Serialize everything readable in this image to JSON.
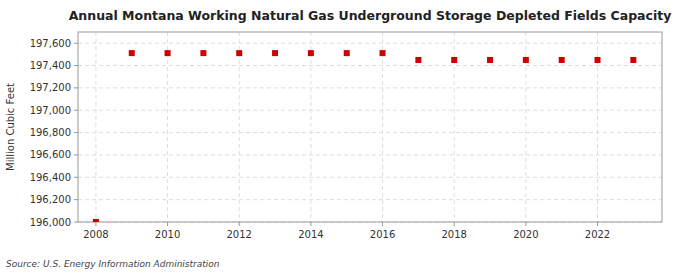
{
  "chart_data": {
    "type": "scatter",
    "title": "Annual Montana Working Natural Gas Underground Storage Depleted Fields Capacity",
    "ylabel": "Million Cubic Feet",
    "annotations": [
      "Source: U.S. Energy Information Administration"
    ],
    "x": [
      2008,
      2009,
      2010,
      2011,
      2012,
      2013,
      2014,
      2015,
      2016,
      2017,
      2018,
      2019,
      2020,
      2021,
      2022,
      2023
    ],
    "values": [
      196000,
      197511,
      197511,
      197511,
      197511,
      197511,
      197511,
      197511,
      197511,
      197450,
      197450,
      197450,
      197450,
      197450,
      197450,
      197450
    ],
    "color": "#cc0000",
    "marker": "square",
    "xlim": [
      2007.5,
      2023.8
    ],
    "xticks": [
      2008,
      2010,
      2012,
      2014,
      2016,
      2018,
      2020,
      2022
    ],
    "ylim": [
      196000,
      197700
    ],
    "yticks": [
      {
        "value": 196000,
        "label": "196,000"
      },
      {
        "value": 196200,
        "label": "196,200"
      },
      {
        "value": 196400,
        "label": "196,400"
      },
      {
        "value": 196600,
        "label": "196,600"
      },
      {
        "value": 196800,
        "label": "196,800"
      },
      {
        "value": 197000,
        "label": "197,000"
      },
      {
        "value": 197200,
        "label": "197,200"
      },
      {
        "value": 197400,
        "label": "197,400"
      },
      {
        "value": 197600,
        "label": "197,600"
      }
    ],
    "grid": true
  }
}
